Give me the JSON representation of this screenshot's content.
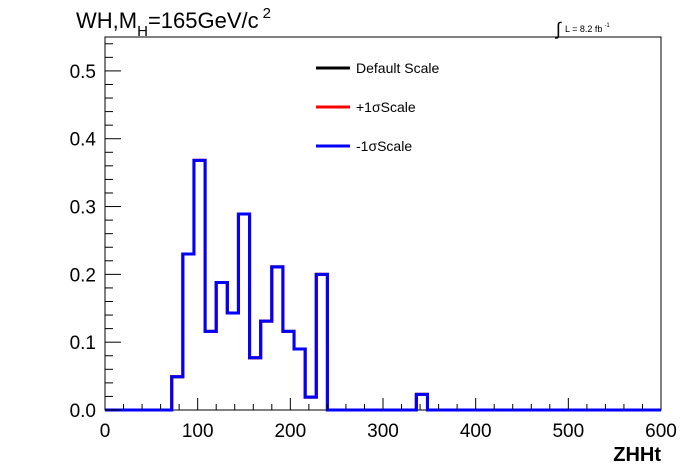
{
  "chart_data": {
    "type": "line",
    "title": "WH,M",
    "title_sub": "H",
    "title_rest": "=165GeV/c",
    "title_sup": "2",
    "lumi_text": "L = 8.2 fb",
    "lumi_sup": "-1",
    "lumi_symbol": "∫",
    "xlabel": "ZHHt",
    "ylabel": "",
    "xlim": [
      0,
      600
    ],
    "ylim": [
      0,
      0.55
    ],
    "x_ticks": [
      "0",
      "100",
      "200",
      "300",
      "400",
      "500",
      "600"
    ],
    "y_ticks": [
      "0.0",
      "0.1",
      "0.2",
      "0.3",
      "0.4",
      "0.5"
    ],
    "grid": false,
    "legend_position": "top-center",
    "bin_edges": [
      0,
      12,
      24,
      36,
      48,
      60,
      72,
      84,
      96,
      108,
      120,
      132,
      144,
      156,
      168,
      180,
      192,
      204,
      216,
      228,
      240,
      252,
      264,
      276,
      288,
      300,
      312,
      324,
      336,
      348,
      360,
      372,
      384,
      396,
      408,
      420,
      432,
      444,
      456,
      468,
      480,
      492,
      504,
      516,
      528,
      540,
      552,
      564,
      576,
      588,
      600
    ],
    "series": [
      {
        "name": "Default Scale",
        "color": "#000000",
        "values": [
          0,
          0,
          0,
          0,
          0,
          0,
          0.049,
          0.23,
          0.368,
          0.116,
          0.188,
          0.143,
          0.289,
          0.077,
          0.131,
          0.211,
          0.116,
          0.09,
          0.019,
          0.2,
          0,
          0,
          0,
          0,
          0,
          0,
          0,
          0,
          0.023,
          0,
          0,
          0,
          0,
          0,
          0,
          0,
          0,
          0,
          0,
          0,
          0,
          0,
          0,
          0,
          0,
          0,
          0,
          0,
          0,
          0
        ]
      },
      {
        "name": "+1σScale",
        "color": "#ff0000",
        "values": [
          0,
          0,
          0,
          0,
          0,
          0,
          0.049,
          0.23,
          0.368,
          0.116,
          0.188,
          0.143,
          0.289,
          0.077,
          0.131,
          0.211,
          0.116,
          0.09,
          0.019,
          0.2,
          0,
          0,
          0,
          0,
          0,
          0,
          0,
          0,
          0.023,
          0,
          0,
          0,
          0,
          0,
          0,
          0,
          0,
          0,
          0,
          0,
          0,
          0,
          0,
          0,
          0,
          0,
          0,
          0,
          0,
          0
        ]
      },
      {
        "name": "-1σScale",
        "color": "#0000ff",
        "values": [
          0,
          0,
          0,
          0,
          0,
          0,
          0.049,
          0.23,
          0.368,
          0.116,
          0.188,
          0.143,
          0.289,
          0.077,
          0.131,
          0.211,
          0.116,
          0.09,
          0.019,
          0.2,
          0,
          0,
          0,
          0,
          0,
          0,
          0,
          0,
          0.023,
          0,
          0,
          0,
          0,
          0,
          0,
          0,
          0,
          0,
          0,
          0,
          0,
          0,
          0,
          0,
          0,
          0,
          0,
          0,
          0,
          0
        ]
      }
    ]
  }
}
